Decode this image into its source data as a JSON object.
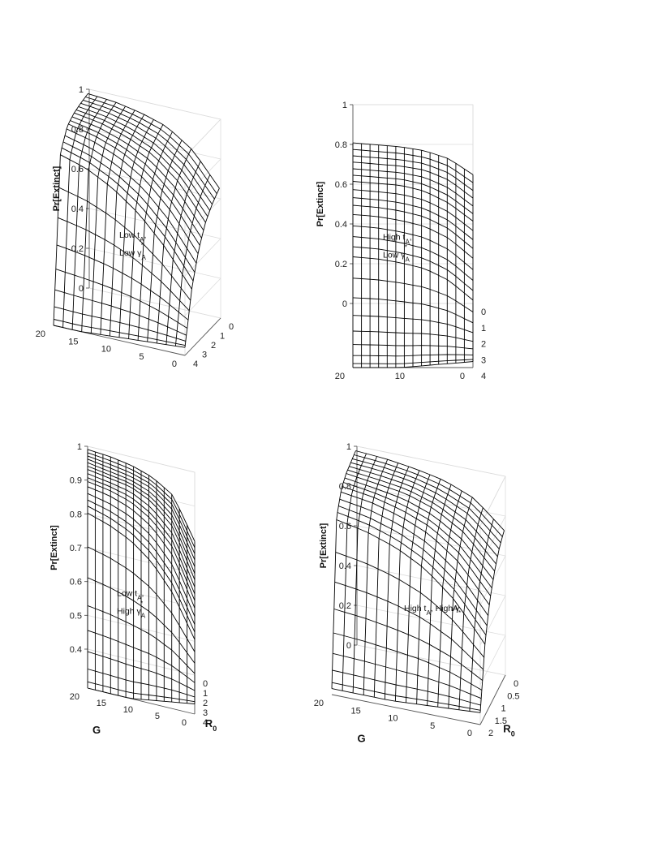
{
  "chart_data": [
    {
      "type": "surface",
      "zlabel": "Pr[Extinct]",
      "annotation": [
        "Low t",
        "A",
        ",",
        "Low γ",
        "A",
        "*"
      ],
      "xlabel": "",
      "ylabel": "",
      "x_ticks": [
        "0",
        "1",
        "2",
        "3",
        "4"
      ],
      "y_ticks": [
        "0",
        "5",
        "10",
        "15",
        "20"
      ],
      "z_ticks": [
        "0",
        "0.2",
        "0.4",
        "0.6",
        "0.8",
        "1"
      ],
      "xlim": [
        0,
        4
      ],
      "ylim": [
        0,
        20
      ],
      "zlim": [
        0,
        1
      ],
      "x_range": [
        0.15,
        4
      ],
      "surface_z": [
        [
          0.04,
          0.3,
          0.46,
          0.56,
          0.62,
          0.66
        ],
        [
          0.03,
          0.48,
          0.64,
          0.73,
          0.78,
          0.82
        ],
        [
          0.02,
          0.62,
          0.77,
          0.84,
          0.88,
          0.91
        ],
        [
          0.01,
          0.72,
          0.85,
          0.9,
          0.93,
          0.95
        ],
        [
          0.0,
          0.79,
          0.9,
          0.94,
          0.96,
          0.975
        ],
        [
          0.0,
          0.83,
          0.93,
          0.96,
          0.975,
          0.985
        ]
      ]
    },
    {
      "type": "surface",
      "zlabel": "Pr[Extinct]",
      "annotation": [
        "High t",
        "A",
        ",",
        "Low γ",
        "A",
        "*"
      ],
      "xlabel": "",
      "ylabel": "",
      "x_ticks": [
        "0",
        "1",
        "2",
        "3",
        "4"
      ],
      "y_ticks": [
        "0",
        "10",
        "20"
      ],
      "z_ticks": [
        "0",
        "0.2",
        "0.4",
        "0.6",
        "0.8",
        "1"
      ],
      "xlim": [
        0,
        4
      ],
      "ylim": [
        0,
        20
      ],
      "zlim": [
        0,
        1
      ],
      "x_range": [
        0.15,
        4
      ],
      "surface_z": [
        [
          0.03,
          0.28,
          0.45,
          0.55,
          0.61,
          0.66
        ],
        [
          0.02,
          0.38,
          0.55,
          0.64,
          0.7,
          0.74
        ],
        [
          0.01,
          0.44,
          0.61,
          0.7,
          0.75,
          0.78
        ],
        [
          0.0,
          0.47,
          0.64,
          0.73,
          0.77,
          0.8
        ],
        [
          0.0,
          0.49,
          0.66,
          0.74,
          0.78,
          0.81
        ],
        [
          0.0,
          0.5,
          0.67,
          0.75,
          0.79,
          0.82
        ]
      ]
    },
    {
      "type": "surface",
      "zlabel": "Pr[Extinct]",
      "annotation": [
        "Low t",
        "A",
        ",",
        "High γ",
        "A",
        "*"
      ],
      "xlabel": "R",
      "xlabel_sub": "0",
      "ylabel": "G",
      "x_ticks": [
        "0",
        "1",
        "2",
        "3",
        "4"
      ],
      "y_ticks": [
        "0",
        "5",
        "10",
        "15",
        "20"
      ],
      "z_ticks": [
        "0.4",
        "0.5",
        "0.6",
        "0.7",
        "0.8",
        "0.9",
        "1"
      ],
      "xlim": [
        0,
        4
      ],
      "ylim": [
        0,
        20
      ],
      "zlim": [
        0.4,
        1
      ],
      "x_range": [
        0.15,
        4
      ],
      "surface_z": [
        [
          0.43,
          0.6,
          0.68,
          0.73,
          0.77,
          0.8
        ],
        [
          0.42,
          0.72,
          0.82,
          0.87,
          0.9,
          0.92
        ],
        [
          0.41,
          0.8,
          0.89,
          0.93,
          0.95,
          0.96
        ],
        [
          0.4,
          0.85,
          0.93,
          0.96,
          0.97,
          0.98
        ],
        [
          0.4,
          0.88,
          0.95,
          0.97,
          0.98,
          0.99
        ],
        [
          0.4,
          0.9,
          0.96,
          0.98,
          0.99,
          0.995
        ]
      ]
    },
    {
      "type": "surface",
      "zlabel": "Pr[Extinct]",
      "annotation": [
        "High t",
        "A",
        ", High γ",
        "A",
        "*",
        ""
      ],
      "xlabel": "R",
      "xlabel_sub": "0",
      "ylabel": "G",
      "x_ticks": [
        "0",
        "0.5",
        "1",
        "1.5",
        "2"
      ],
      "y_ticks": [
        "0",
        "5",
        "10",
        "15",
        "20"
      ],
      "z_ticks": [
        "0",
        "0.2",
        "0.4",
        "0.6",
        "0.8",
        "1"
      ],
      "xlim": [
        0,
        2
      ],
      "ylim": [
        0,
        20
      ],
      "zlim": [
        0,
        1
      ],
      "x_range": [
        0.1,
        2
      ],
      "surface_z": [
        [
          0.06,
          0.36,
          0.53,
          0.63,
          0.7,
          0.74
        ],
        [
          0.05,
          0.55,
          0.71,
          0.79,
          0.84,
          0.87
        ],
        [
          0.04,
          0.68,
          0.82,
          0.88,
          0.91,
          0.93
        ],
        [
          0.03,
          0.76,
          0.88,
          0.93,
          0.95,
          0.96
        ],
        [
          0.03,
          0.81,
          0.92,
          0.95,
          0.97,
          0.98
        ],
        [
          0.03,
          0.84,
          0.94,
          0.97,
          0.98,
          0.99
        ]
      ]
    }
  ]
}
